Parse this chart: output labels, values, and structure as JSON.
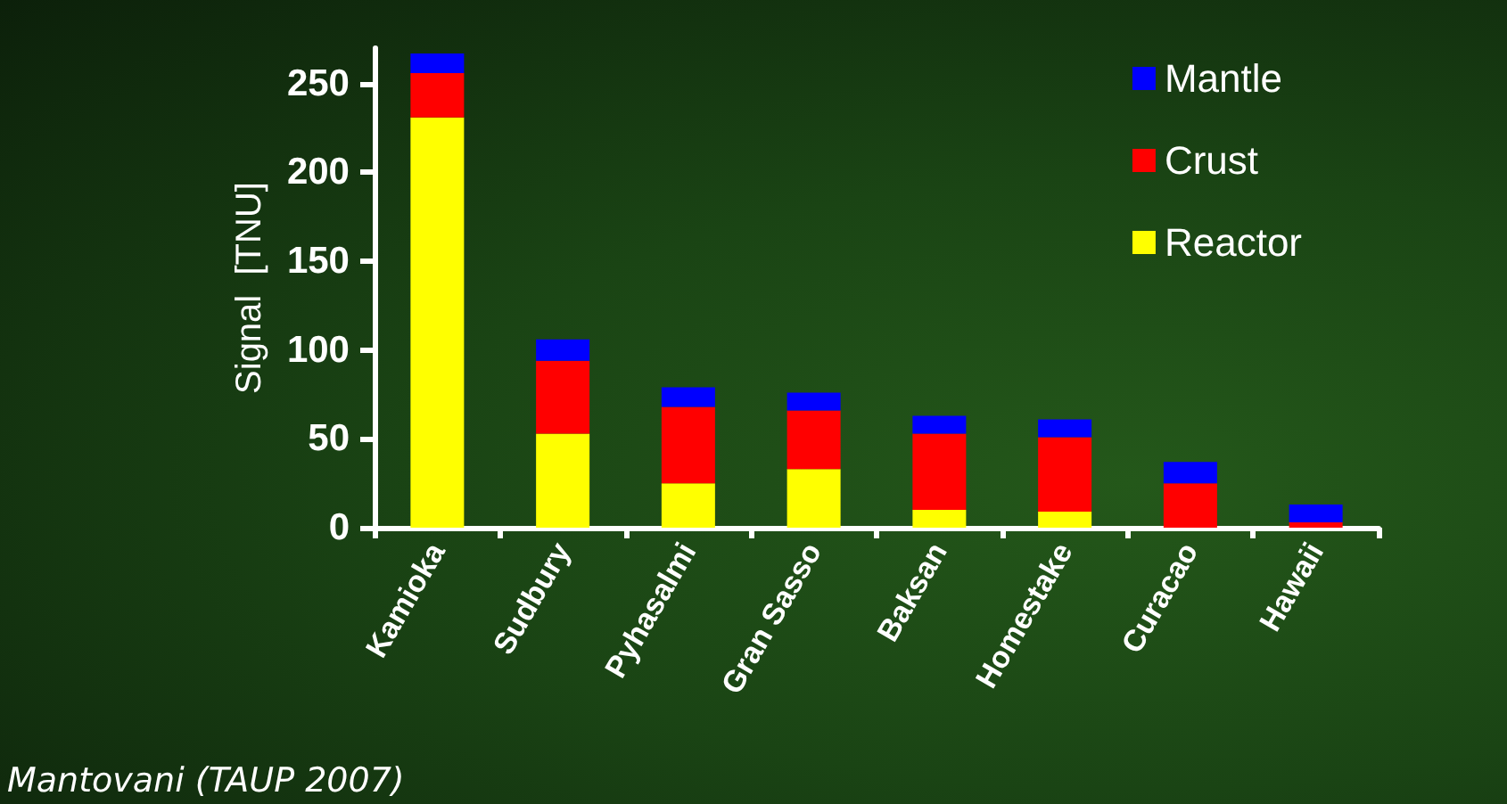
{
  "chart_data": {
    "type": "bar",
    "stacked": true,
    "ylabel": "Signal  [TNU]",
    "categories": [
      "Kamioka",
      "Sudbury",
      "Pyhasalmi",
      "Gran Sasso",
      "Baksan",
      "Homestake",
      "Curacao",
      "Hawaii"
    ],
    "series": [
      {
        "name": "Reactor",
        "color": "#ffff00",
        "values": [
          231,
          53,
          25,
          33,
          10,
          9,
          0,
          0
        ]
      },
      {
        "name": "Crust",
        "color": "#ff0000",
        "values": [
          25,
          41,
          43,
          33,
          43,
          42,
          25,
          3
        ]
      },
      {
        "name": "Mantle",
        "color": "#0000ff",
        "values": [
          11,
          12,
          11,
          10,
          10,
          10,
          12,
          10
        ]
      }
    ],
    "ylim": [
      0,
      270
    ],
    "yticks": [
      0,
      50,
      100,
      150,
      200,
      250
    ],
    "grid": false,
    "legend": "top right",
    "annotations": [
      "Mantovani (TAUP 2007)"
    ]
  }
}
